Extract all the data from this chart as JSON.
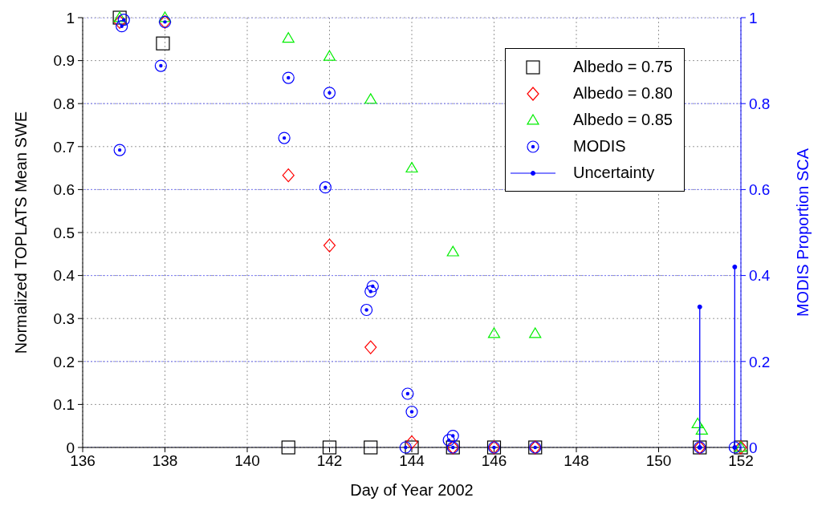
{
  "chart_data": {
    "type": "scatter",
    "xlabel": "Day of Year 2002",
    "ylabel": "Normalized TOPLATS Mean SWE",
    "y2label": "MODIS Proportion SCA",
    "xlim": [
      136,
      152
    ],
    "xticks": [
      136,
      138,
      140,
      142,
      144,
      146,
      148,
      150,
      152
    ],
    "ylim": [
      0,
      1
    ],
    "yticks": [
      0,
      0.1,
      0.2,
      0.3,
      0.4,
      0.5,
      0.6,
      0.7,
      0.8,
      0.9,
      1
    ],
    "y2lim": [
      0,
      1
    ],
    "y2ticks": [
      0,
      0.2,
      0.4,
      0.6,
      0.8,
      1
    ],
    "grid": true,
    "legend": "top right",
    "series": [
      {
        "name": "Albedo = 0.75",
        "color": "#000000",
        "marker": "square",
        "x": [
          136.9,
          137.95,
          141,
          142,
          143,
          144,
          145,
          146,
          147,
          151,
          152
        ],
        "values": [
          1,
          0.94,
          0,
          0,
          0,
          0,
          0,
          0,
          0,
          0,
          0
        ]
      },
      {
        "name": "Albedo = 0.80",
        "color": "#ff0000",
        "marker": "diamond",
        "x": [
          136.9,
          138,
          141,
          142,
          143,
          144,
          145,
          146,
          147,
          151,
          152
        ],
        "values": [
          0.99,
          0.99,
          0.633,
          0.47,
          0.233,
          0.012,
          0,
          0,
          0,
          0,
          0
        ]
      },
      {
        "name": "Albedo = 0.85",
        "color": "#00ee00",
        "marker": "triangle",
        "x": [
          136.9,
          138,
          141,
          142,
          143,
          144,
          145,
          146,
          147,
          150.95,
          151.05,
          152
        ],
        "values": [
          1,
          1,
          0.952,
          0.91,
          0.81,
          0.65,
          0.455,
          0.265,
          0.265,
          0.055,
          0.04,
          0
        ]
      },
      {
        "name": "MODIS",
        "color": "#0000ff",
        "marker": "circle",
        "axis": "y2",
        "x": [
          136.9,
          136.95,
          137.0,
          137.9,
          138.0,
          140.9,
          141.0,
          141.9,
          142.0,
          142.9,
          143.0,
          143.05,
          143.85,
          143.9,
          144.0,
          144.9,
          145.0,
          145.0,
          146,
          147,
          151,
          151.85
        ],
        "values": [
          0.692,
          0.98,
          0.995,
          0.888,
          0.99,
          0.72,
          0.86,
          0.605,
          0.825,
          0.32,
          0.363,
          0.375,
          0,
          0.125,
          0.083,
          0.017,
          0.027,
          0,
          0,
          0,
          0,
          0
        ]
      },
      {
        "name": "Uncertainty",
        "type": "line",
        "color": "#0000ff",
        "marker": "circle",
        "axis": "y2",
        "x": [
          151,
          151,
          151.5,
          151.85,
          151.85
        ],
        "values": [
          0,
          0.327,
          null,
          0,
          0.42
        ]
      }
    ]
  }
}
